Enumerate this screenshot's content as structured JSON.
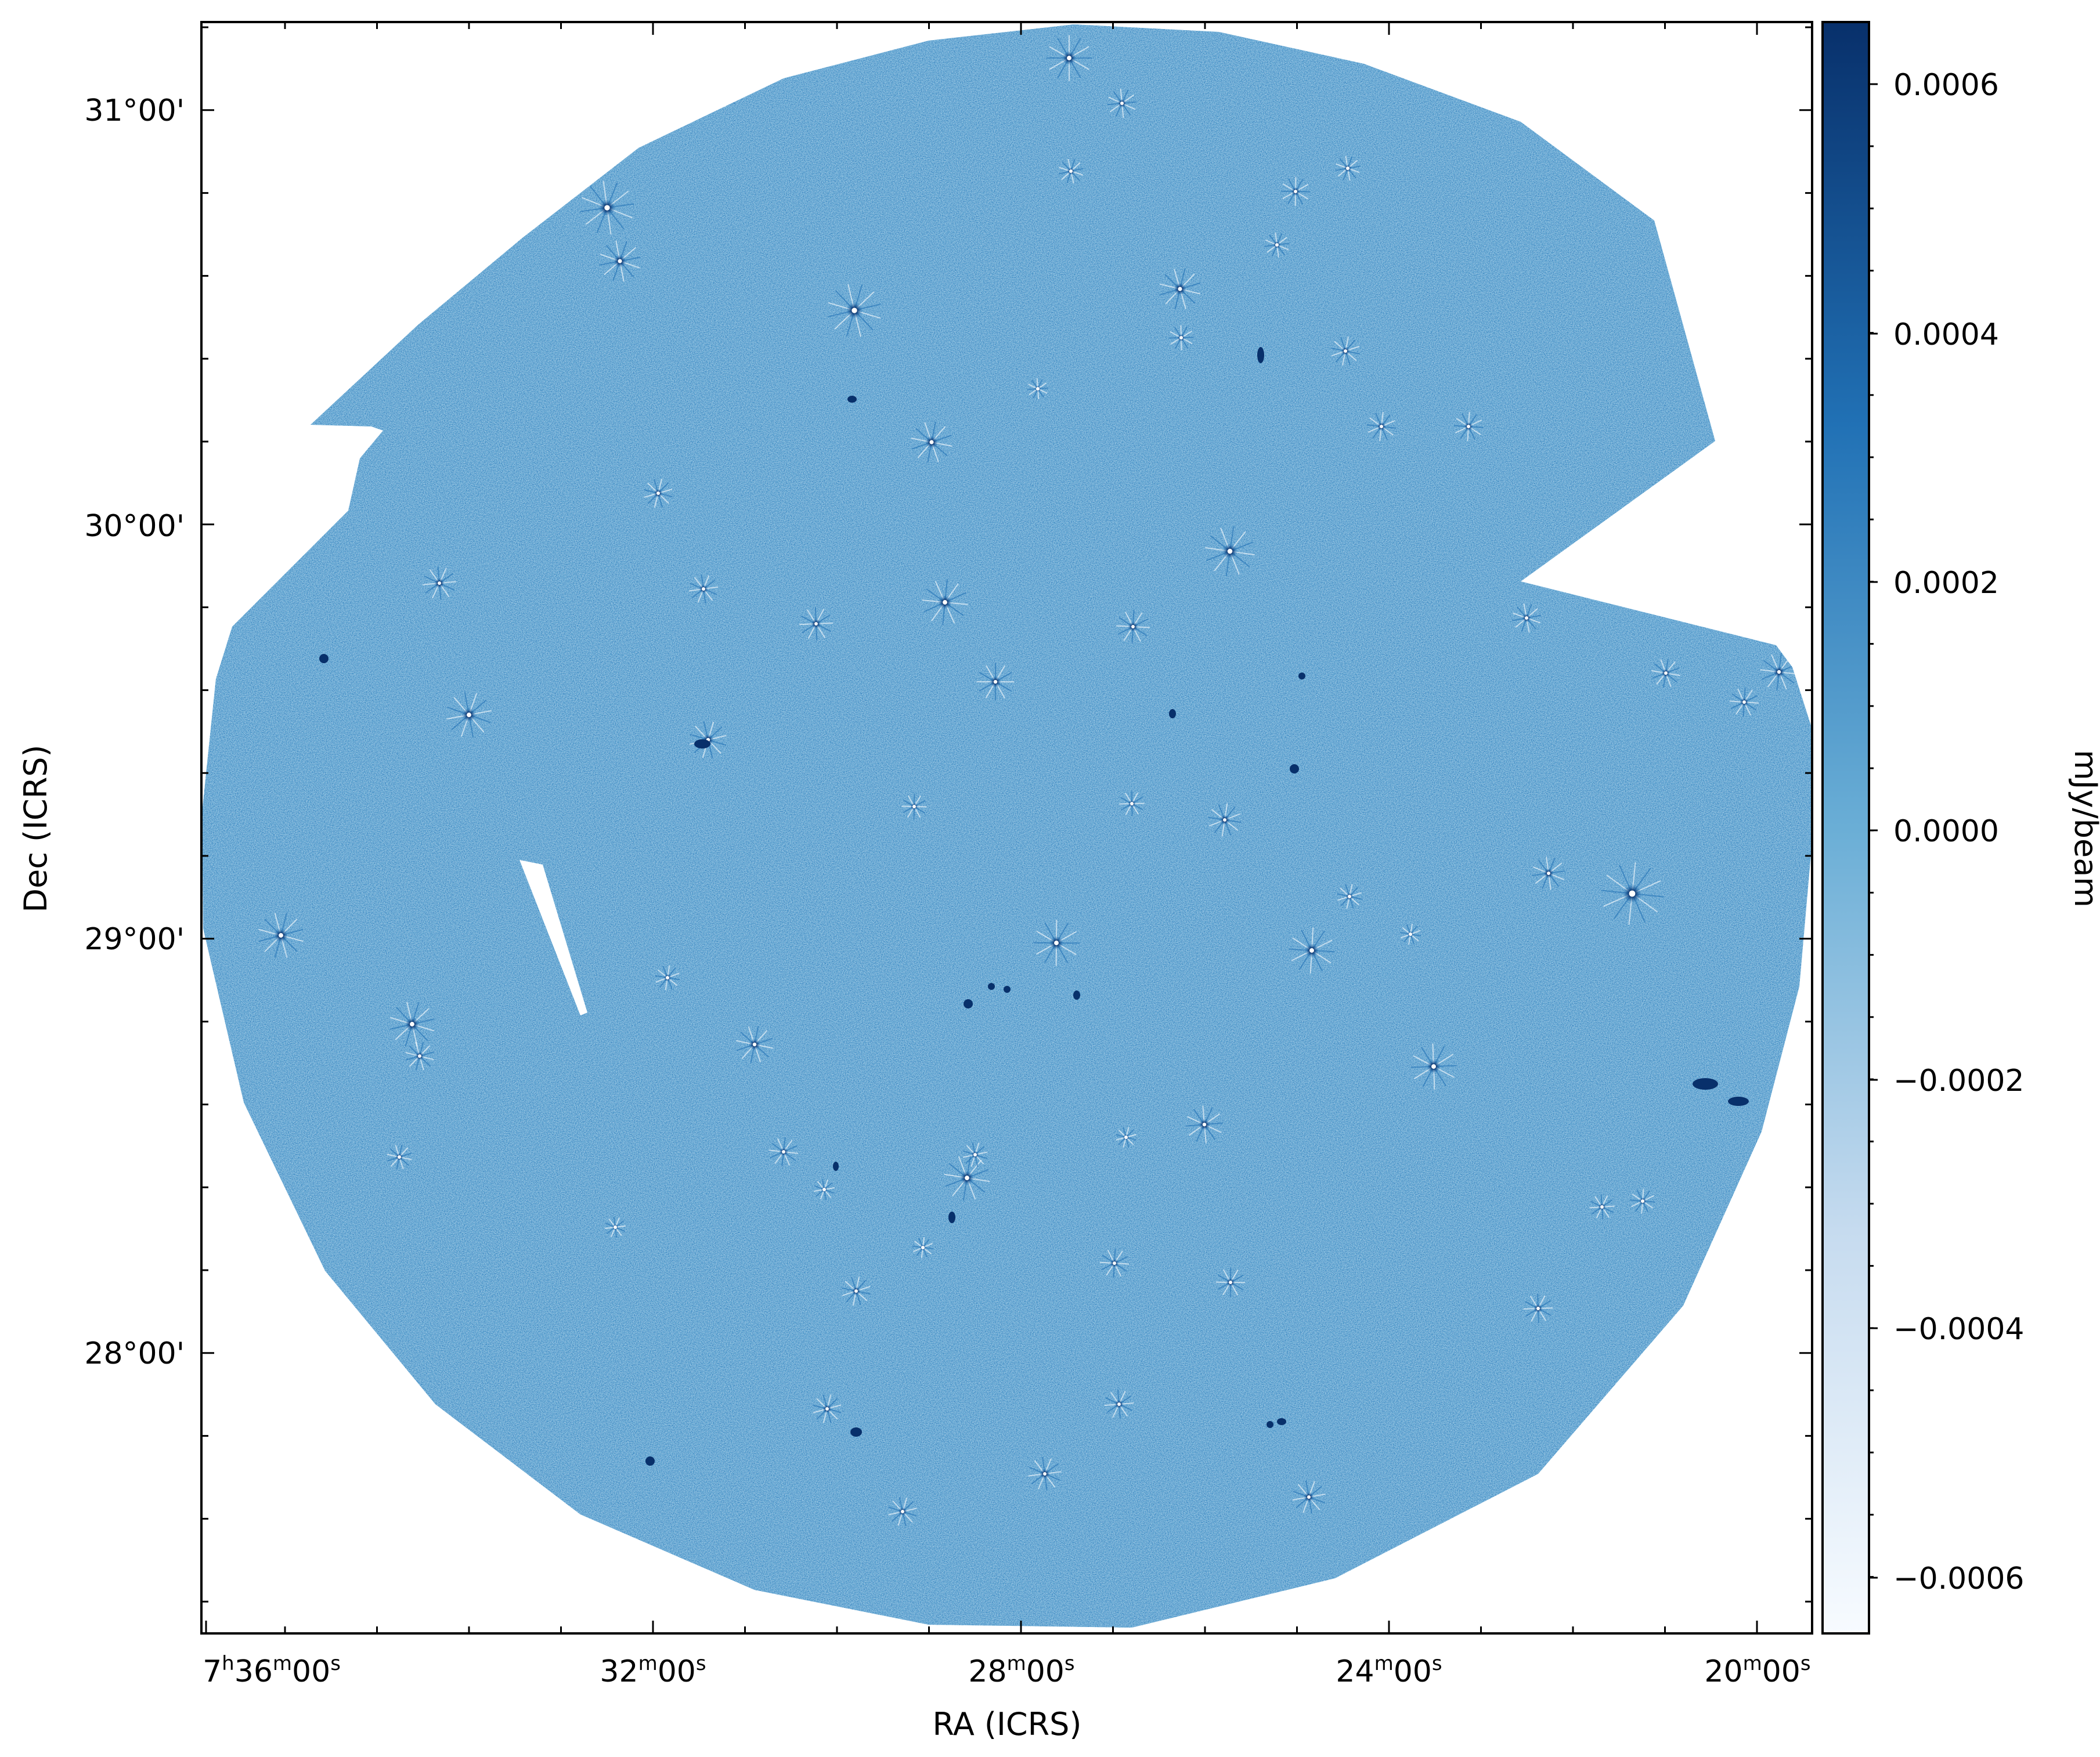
{
  "image": {
    "dec_axis": {
      "label": "Dec (ICRS)",
      "ticks": [
        "31°00'",
        "30°00'",
        "29°00'",
        "28°00'"
      ]
    },
    "ra_axis": {
      "label": "RA (ICRS)",
      "ticks": [
        {
          "h": "7",
          "m": "36",
          "s": "00"
        },
        {
          "h": "",
          "m": "32",
          "s": "00"
        },
        {
          "h": "",
          "m": "28",
          "s": "00"
        },
        {
          "h": "",
          "m": "24",
          "s": "00"
        },
        {
          "h": "",
          "m": "20",
          "s": "00"
        }
      ],
      "unit_marks": {
        "h": "h",
        "m": "m",
        "s": "s"
      }
    },
    "colorbar": {
      "label": "mJy/beam",
      "ticks": [
        "0.0006",
        "0.0004",
        "0.0002",
        "0.0000",
        "−0.0002",
        "−0.0004",
        "−0.0006"
      ],
      "colormap": "Blues",
      "colors": {
        "low": "#f7fbff",
        "mid": "#6aaed6",
        "high": "#08306b"
      }
    },
    "colors": {
      "background_field": "#6aaed6",
      "noise_dark": "#2171b5",
      "noise_light": "#9ecae1",
      "source_dark": "#08306b"
    }
  }
}
